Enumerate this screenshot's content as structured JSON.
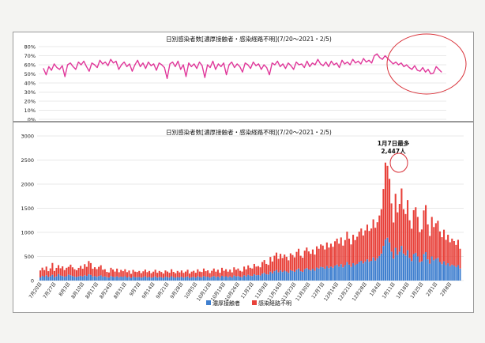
{
  "colors": {
    "line": "#e0379a",
    "bar_close": "#3f7fcf",
    "bar_unknown": "#e8413a",
    "grid": "#d2d2d2",
    "highlight": "#d9323a"
  },
  "chart_data": [
    {
      "type": "line",
      "title": "日別感染者数[濃厚接触者・感染経路不明](7/20～2021・2/5)",
      "y_ticks": [
        "80%",
        "70%",
        "60%",
        "50%",
        "40%",
        "30%",
        "20%",
        "10%",
        "0%"
      ],
      "ylim": [
        0,
        80
      ],
      "grid": true,
      "series": [
        {
          "values": [
            56,
            49,
            58,
            54,
            61,
            57,
            55,
            59,
            47,
            60,
            62,
            58,
            55,
            63,
            60,
            64,
            58,
            53,
            62,
            60,
            57,
            65,
            61,
            63,
            59,
            66,
            62,
            64,
            55,
            60,
            63,
            58,
            61,
            53,
            60,
            65,
            58,
            62,
            56,
            63,
            59,
            61,
            54,
            62,
            60,
            57,
            45,
            61,
            63,
            58,
            64,
            55,
            60,
            47,
            62,
            58,
            61,
            56,
            63,
            59,
            46,
            60,
            57,
            64,
            55,
            61,
            58,
            62,
            49,
            60,
            63,
            57,
            61,
            58,
            52,
            62,
            60,
            56,
            63,
            59,
            61,
            55,
            60,
            57,
            49,
            62,
            60,
            64,
            58,
            61,
            56,
            62,
            59,
            55,
            63,
            60,
            61,
            57,
            64,
            58,
            62,
            60,
            66,
            61,
            59,
            63,
            58,
            64,
            60,
            62,
            57,
            65,
            61,
            63,
            60,
            66,
            62,
            64,
            61,
            67,
            63,
            65,
            62,
            70,
            72,
            68,
            66,
            70,
            67,
            64,
            61,
            63,
            60,
            62,
            58,
            60,
            57,
            55,
            59,
            54,
            53,
            57,
            52,
            55,
            50,
            51,
            58,
            55,
            52
          ]
        }
      ]
    },
    {
      "type": "bar",
      "title": "日別感染者数[濃厚接触者・感染経路不明](7/20～2021・2/5)",
      "y_ticks": [
        "3000",
        "2500",
        "2000",
        "1500",
        "1000",
        "500",
        "0"
      ],
      "ylim": [
        0,
        3000
      ],
      "grid": true,
      "legend": "bottom",
      "x_tick_labels": [
        "7月20日",
        "7月27日",
        "8月3日",
        "8月10日",
        "8月17日",
        "8月24日",
        "8月31日",
        "9月7日",
        "9月14日",
        "9月21日",
        "9月28日",
        "10月5日",
        "10月12日",
        "10月19日",
        "10月26日",
        "11月2日",
        "11月9日",
        "11月16日",
        "11月23日",
        "11月30日",
        "12月7日",
        "12月14日",
        "12月21日",
        "12月28日",
        "1月4日",
        "1月11日",
        "1月18日",
        "1月25日",
        "2月1日",
        "2月8日"
      ],
      "annotation": {
        "lines": [
          "1月7日最多",
          "2,447人"
        ],
        "index": 171
      },
      "series": [
        {
          "name": "濃厚接触者",
          "values": [
            65,
            98,
            82,
            110,
            75,
            93,
            120,
            70,
            88,
            135,
            105,
            95,
            78,
            90,
            125,
            110,
            95,
            80,
            75,
            88,
            100,
            85,
            110,
            95,
            130,
            118,
            85,
            92,
            78,
            95,
            108,
            80,
            85,
            70,
            63,
            95,
            80,
            72,
            88,
            68,
            82,
            75,
            90,
            65,
            78,
            55,
            82,
            70,
            68,
            75,
            60,
            72,
            88,
            65,
            75,
            58,
            70,
            85,
            62,
            75,
            68,
            55,
            80,
            72,
            62,
            90,
            70,
            58,
            75,
            65,
            80,
            60,
            72,
            85,
            55,
            70,
            78,
            62,
            88,
            72,
            68,
            95,
            75,
            82,
            60,
            78,
            95,
            70,
            85,
            62,
            100,
            78,
            90,
            70,
            88,
            65,
            105,
            85,
            95,
            78,
            72,
            110,
            88,
            120,
            100,
            95,
            130,
            110,
            115,
            105,
            145,
            160,
            130,
            125,
            185,
            150,
            195,
            220,
            170,
            210,
            178,
            205,
            188,
            160,
            215,
            200,
            182,
            225,
            250,
            195,
            180,
            235,
            260,
            230,
            210,
            245,
            205,
            270,
            250,
            285,
            275,
            245,
            300,
            260,
            290,
            265,
            310,
            330,
            290,
            340,
            275,
            320,
            385,
            330,
            285,
            360,
            320,
            345,
            385,
            410,
            355,
            395,
            440,
            390,
            410,
            480,
            415,
            460,
            510,
            560,
            720,
            850,
            890,
            790,
            600,
            455,
            680,
            535,
            600,
            720,
            560,
            520,
            630,
            470,
            405,
            550,
            575,
            500,
            380,
            400,
            550,
            590,
            440,
            350,
            500,
            420,
            450,
            470,
            385,
            340,
            400,
            320,
            360,
            300,
            330,
            310,
            280,
            320,
            250
          ],
          "color_key": "bar_close"
        },
        {
          "name": "感染経路不明",
          "values": [
            145,
            170,
            135,
            180,
            120,
            160,
            245,
            130,
            175,
            185,
            150,
            200,
            140,
            175,
            160,
            220,
            180,
            155,
            140,
            175,
            205,
            160,
            230,
            190,
            275,
            245,
            160,
            185,
            160,
            190,
            210,
            145,
            150,
            110,
            105,
            170,
            150,
            115,
            160,
            105,
            140,
            120,
            145,
            110,
            130,
            85,
            140,
            115,
            110,
            125,
            95,
            120,
            140,
            110,
            125,
            95,
            115,
            140,
            100,
            125,
            110,
            90,
            130,
            115,
            100,
            145,
            110,
            95,
            125,
            105,
            130,
            100,
            115,
            140,
            90,
            115,
            125,
            100,
            145,
            115,
            110,
            155,
            120,
            130,
            95,
            125,
            155,
            115,
            140,
            100,
            165,
            125,
            145,
            115,
            140,
            105,
            170,
            140,
            155,
            125,
            115,
            180,
            145,
            195,
            165,
            155,
            215,
            180,
            185,
            170,
            240,
            265,
            215,
            200,
            305,
            245,
            320,
            360,
            280,
            345,
            290,
            335,
            305,
            260,
            350,
            330,
            300,
            370,
            410,
            320,
            295,
            385,
            425,
            375,
            345,
            400,
            335,
            440,
            410,
            465,
            450,
            400,
            490,
            425,
            475,
            435,
            505,
            540,
            475,
            555,
            450,
            520,
            630,
            540,
            465,
            590,
            520,
            565,
            630,
            670,
            580,
            645,
            720,
            640,
            670,
            790,
            680,
            750,
            840,
            920,
            1180,
            1597,
            1490,
            1320,
            1000,
            750,
            1120,
            880,
            990,
            1190,
            920,
            860,
            1040,
            780,
            670,
            910,
            945,
            820,
            625,
            660,
            905,
            975,
            725,
            575,
            820,
            690,
            740,
            770,
            635,
            560,
            655,
            525,
            590,
            495,
            540,
            510,
            460,
            525,
            410
          ],
          "color_key": "bar_unknown"
        }
      ]
    }
  ]
}
